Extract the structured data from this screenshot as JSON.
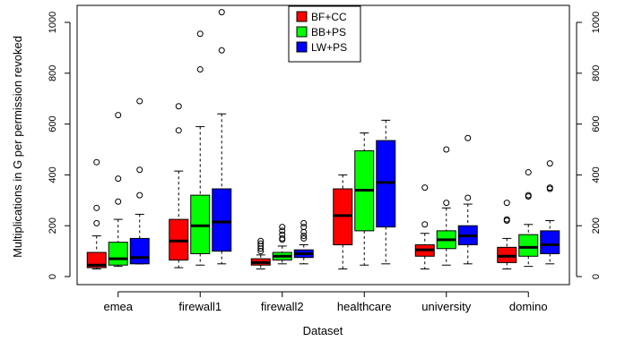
{
  "chart_data": {
    "type": "boxplot",
    "xlabel": "Dataset",
    "ylabel": "Multiplications in G per permission revoked",
    "categories": [
      "emea",
      "firewall1",
      "firewall2",
      "healthcare",
      "university",
      "domino"
    ],
    "ylim": [
      0,
      1050
    ],
    "yticks": [
      0,
      200,
      400,
      600,
      800,
      1000
    ],
    "legend_position": "top-center",
    "grid": false,
    "series": [
      {
        "name": "BF+CC",
        "color": "#ff0000",
        "boxes": [
          {
            "min": 30,
            "q1": 35,
            "median": 45,
            "q3": 95,
            "max": 160,
            "outliers": [
              210,
              270,
              450
            ]
          },
          {
            "min": 35,
            "q1": 65,
            "median": 140,
            "q3": 225,
            "max": 415,
            "outliers": [
              575,
              670
            ]
          },
          {
            "min": 30,
            "q1": 45,
            "median": 55,
            "q3": 70,
            "max": 85,
            "outliers": [
              100,
              110,
              120,
              130,
              140
            ]
          },
          {
            "min": 30,
            "q1": 125,
            "median": 240,
            "q3": 345,
            "max": 400,
            "outliers": []
          },
          {
            "min": 30,
            "q1": 80,
            "median": 105,
            "q3": 125,
            "max": 170,
            "outliers": [
              205,
              350
            ]
          },
          {
            "min": 30,
            "q1": 55,
            "median": 80,
            "q3": 115,
            "max": 150,
            "outliers": [
              220,
              225,
              290
            ]
          }
        ]
      },
      {
        "name": "BB+PS",
        "color": "#00ff00",
        "boxes": [
          {
            "min": 40,
            "q1": 45,
            "median": 70,
            "q3": 135,
            "max": 225,
            "outliers": [
              295,
              385,
              635
            ]
          },
          {
            "min": 45,
            "q1": 90,
            "median": 200,
            "q3": 320,
            "max": 590,
            "outliers": [
              815,
              955
            ]
          },
          {
            "min": 50,
            "q1": 65,
            "median": 80,
            "q3": 95,
            "max": 120,
            "outliers": [
              145,
              150,
              165,
              180,
              195
            ]
          },
          {
            "min": 45,
            "q1": 180,
            "median": 340,
            "q3": 495,
            "max": 565,
            "outliers": []
          },
          {
            "min": 45,
            "q1": 110,
            "median": 145,
            "q3": 180,
            "max": 270,
            "outliers": [
              290,
              500
            ]
          },
          {
            "min": 40,
            "q1": 80,
            "median": 115,
            "q3": 165,
            "max": 205,
            "outliers": [
              315,
              320,
              410
            ]
          }
        ]
      },
      {
        "name": "LW+PS",
        "color": "#0000ff",
        "boxes": [
          {
            "min": 50,
            "q1": 50,
            "median": 75,
            "q3": 150,
            "max": 245,
            "outliers": [
              320,
              420,
              690
            ]
          },
          {
            "min": 50,
            "q1": 100,
            "median": 215,
            "q3": 345,
            "max": 640,
            "outliers": [
              890,
              1040
            ]
          },
          {
            "min": 50,
            "q1": 75,
            "median": 90,
            "q3": 105,
            "max": 125,
            "outliers": [
              150,
              160,
              175,
              195,
              210
            ]
          },
          {
            "min": 50,
            "q1": 195,
            "median": 370,
            "q3": 535,
            "max": 615,
            "outliers": []
          },
          {
            "min": 50,
            "q1": 125,
            "median": 160,
            "q3": 200,
            "max": 285,
            "outliers": [
              310,
              545
            ]
          },
          {
            "min": 50,
            "q1": 90,
            "median": 125,
            "q3": 180,
            "max": 220,
            "outliers": [
              345,
              350,
              445
            ]
          }
        ]
      }
    ]
  }
}
